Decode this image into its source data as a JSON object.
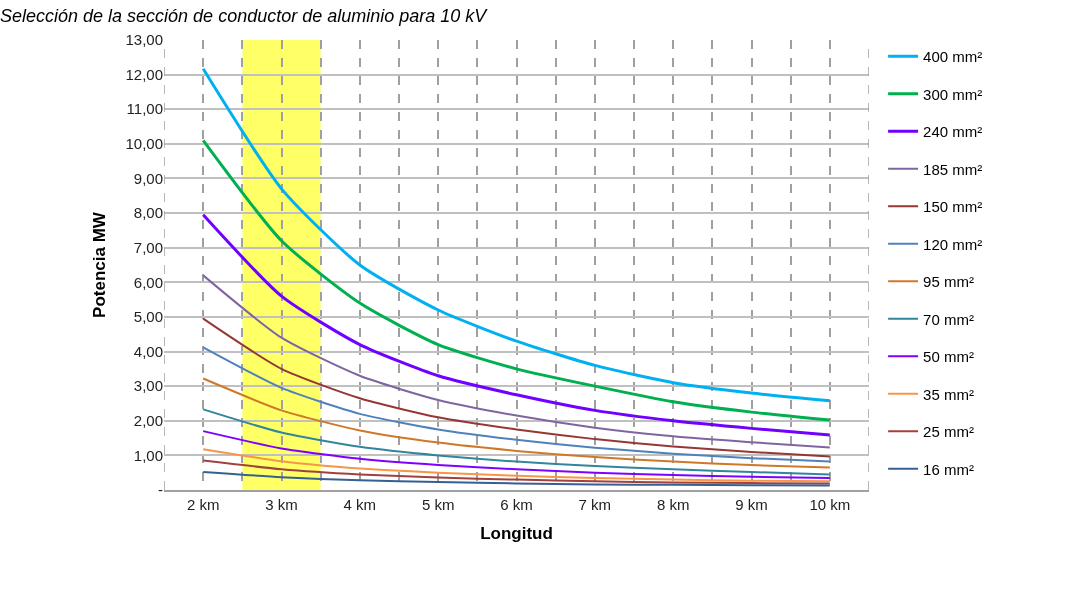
{
  "chart_data": {
    "type": "line",
    "title": "Selección de la sección de conductor de aluminio para 10 kV",
    "xlabel": "Longitud",
    "ylabel": "Potencia MW",
    "x": [
      2,
      3,
      4,
      5,
      6,
      7,
      8,
      9,
      10
    ],
    "xlim": [
      1.5,
      10.5
    ],
    "xticks": [
      {
        "value": 1.5,
        "label": null
      },
      {
        "value": 2,
        "label": "2 km"
      },
      {
        "value": 2.5,
        "label": null
      },
      {
        "value": 3,
        "label": "3 km"
      },
      {
        "value": 3.5,
        "label": null
      },
      {
        "value": 4,
        "label": "4 km"
      },
      {
        "value": 4.5,
        "label": null
      },
      {
        "value": 5,
        "label": "5 km"
      },
      {
        "value": 5.5,
        "label": null
      },
      {
        "value": 6,
        "label": "6 km"
      },
      {
        "value": 6.5,
        "label": null
      },
      {
        "value": 7,
        "label": "7 km"
      },
      {
        "value": 7.5,
        "label": null
      },
      {
        "value": 8,
        "label": "8 km"
      },
      {
        "value": 8.5,
        "label": null
      },
      {
        "value": 9,
        "label": "9 km"
      },
      {
        "value": 9.5,
        "label": null
      },
      {
        "value": 10,
        "label": "10 km"
      },
      {
        "value": 10.5,
        "label": null
      }
    ],
    "ylim": [
      0,
      13
    ],
    "yticks": [
      {
        "value": 0,
        "label": "-"
      },
      {
        "value": 1,
        "label": "1,00"
      },
      {
        "value": 2,
        "label": "2,00"
      },
      {
        "value": 3,
        "label": "3,00"
      },
      {
        "value": 4,
        "label": "4,00"
      },
      {
        "value": 5,
        "label": "5,00"
      },
      {
        "value": 6,
        "label": "6,00"
      },
      {
        "value": 7,
        "label": "7,00"
      },
      {
        "value": 8,
        "label": "8,00"
      },
      {
        "value": 9,
        "label": "9,00"
      },
      {
        "value": 10,
        "label": "10,00"
      },
      {
        "value": 11,
        "label": "11,00"
      },
      {
        "value": 12,
        "label": "12,00"
      },
      {
        "value": 13,
        "label": "13,00"
      }
    ],
    "grid": true,
    "legend": "right",
    "marker": "none",
    "line_style": "solid",
    "bands": [
      {
        "axis": "x",
        "from": 2.5,
        "to": 3.5,
        "color": "#ffff66"
      }
    ],
    "series": [
      {
        "name": "400 mm²",
        "color": "#00b0f0",
        "values": [
          12.17,
          8.7,
          6.5,
          5.2,
          4.3,
          3.6,
          3.1,
          2.8,
          2.58
        ]
      },
      {
        "name": "300 mm²",
        "color": "#00b050",
        "values": [
          10.1,
          7.2,
          5.4,
          4.2,
          3.5,
          3.0,
          2.55,
          2.25,
          2.02
        ]
      },
      {
        "name": "240 mm²",
        "color": "#7000ff",
        "values": [
          7.95,
          5.6,
          4.2,
          3.3,
          2.75,
          2.3,
          2.0,
          1.78,
          1.59
        ]
      },
      {
        "name": "185 mm²",
        "color": "#8064a2",
        "values": [
          6.2,
          4.4,
          3.3,
          2.6,
          2.15,
          1.8,
          1.55,
          1.38,
          1.23
        ]
      },
      {
        "name": "150 mm²",
        "color": "#953735",
        "values": [
          4.95,
          3.5,
          2.65,
          2.1,
          1.75,
          1.47,
          1.26,
          1.1,
          0.97
        ]
      },
      {
        "name": "120 mm²",
        "color": "#4f81bd",
        "values": [
          4.12,
          2.95,
          2.2,
          1.75,
          1.45,
          1.22,
          1.05,
          0.92,
          0.82
        ]
      },
      {
        "name": "95 mm²",
        "color": "#d0782a",
        "values": [
          3.22,
          2.3,
          1.72,
          1.37,
          1.13,
          0.95,
          0.82,
          0.72,
          0.65
        ]
      },
      {
        "name": "70 mm²",
        "color": "#31859c",
        "values": [
          2.33,
          1.66,
          1.25,
          1.0,
          0.82,
          0.69,
          0.6,
          0.52,
          0.45
        ]
      },
      {
        "name": "50 mm²",
        "color": "#7f00ff",
        "values": [
          1.7,
          1.2,
          0.9,
          0.72,
          0.6,
          0.5,
          0.43,
          0.38,
          0.35
        ]
      },
      {
        "name": "35 mm²",
        "color": "#f79646",
        "values": [
          1.18,
          0.83,
          0.62,
          0.5,
          0.41,
          0.35,
          0.3,
          0.27,
          0.25
        ]
      },
      {
        "name": "25 mm²",
        "color": "#a0413e",
        "values": [
          0.85,
          0.6,
          0.45,
          0.36,
          0.3,
          0.25,
          0.22,
          0.2,
          0.19
        ]
      },
      {
        "name": "16 mm²",
        "color": "#376092",
        "values": [
          0.52,
          0.37,
          0.28,
          0.23,
          0.19,
          0.16,
          0.15,
          0.14,
          0.13
        ]
      }
    ]
  }
}
